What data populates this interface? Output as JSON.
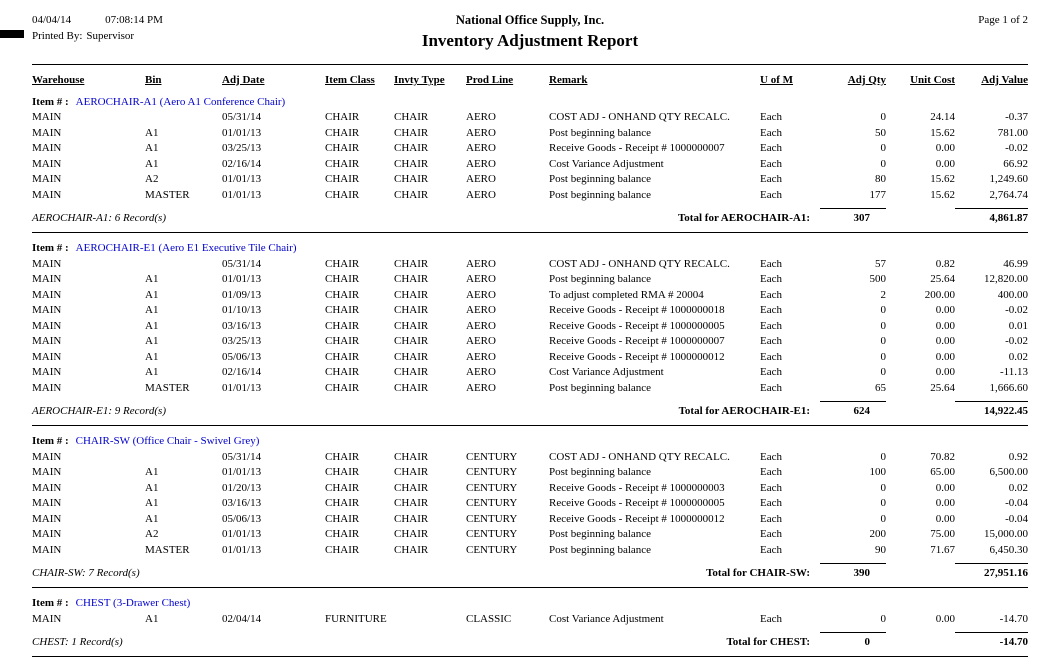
{
  "colors": {
    "item_link": "#0000cc"
  },
  "header": {
    "date": "04/04/14",
    "time": "07:08:14 PM",
    "printed_by_label": "Printed By:",
    "printed_by_value": "Supervisor",
    "company": "National Office Supply, Inc.",
    "report_title": "Inventory Adjustment Report",
    "page_label": "Page 1 of 2"
  },
  "table": {
    "columns": [
      "Warehouse",
      "Bin",
      "Adj Date",
      "Item Class",
      "Invty Type",
      "Prod Line",
      "Remark",
      "U of M",
      "Adj Qty",
      "Unit Cost",
      "Adj Value"
    ],
    "column_keys": [
      "warehouse",
      "bin",
      "adj_date",
      "item_class",
      "invty_type",
      "prod_line",
      "remark",
      "u_of_m",
      "adj_qty",
      "unit_cost",
      "adj_value"
    ],
    "groups": [
      {
        "item_label": "Item # :",
        "item_name": "AEROCHAIR-A1 (Aero A1 Conference Chair)",
        "rows": [
          [
            "MAIN",
            "",
            "05/31/14",
            "CHAIR",
            "CHAIR",
            "AERO",
            "COST ADJ - ONHAND QTY RECALC.",
            "Each",
            "0",
            "24.14",
            "-0.37"
          ],
          [
            "MAIN",
            "A1",
            "01/01/13",
            "CHAIR",
            "CHAIR",
            "AERO",
            "Post beginning balance",
            "Each",
            "50",
            "15.62",
            "781.00"
          ],
          [
            "MAIN",
            "A1",
            "03/25/13",
            "CHAIR",
            "CHAIR",
            "AERO",
            "Receive Goods - Receipt # 1000000007",
            "Each",
            "0",
            "0.00",
            "-0.02"
          ],
          [
            "MAIN",
            "A1",
            "02/16/14",
            "CHAIR",
            "CHAIR",
            "AERO",
            "Cost Variance Adjustment",
            "Each",
            "0",
            "0.00",
            "66.92"
          ],
          [
            "MAIN",
            "A2",
            "01/01/13",
            "CHAIR",
            "CHAIR",
            "AERO",
            "Post beginning balance",
            "Each",
            "80",
            "15.62",
            "1,249.60"
          ],
          [
            "MAIN",
            "MASTER",
            "01/01/13",
            "CHAIR",
            "CHAIR",
            "AERO",
            "Post beginning balance",
            "Each",
            "177",
            "15.62",
            "2,764.74"
          ]
        ],
        "record_count": "AEROCHAIR-A1: 6 Record(s)",
        "total_label": "Total for AEROCHAIR-A1:",
        "total_qty": "307",
        "total_value": "4,861.87"
      },
      {
        "item_label": "Item # :",
        "item_name": "AEROCHAIR-E1 (Aero E1 Executive Tile Chair)",
        "rows": [
          [
            "MAIN",
            "",
            "05/31/14",
            "CHAIR",
            "CHAIR",
            "AERO",
            "COST ADJ - ONHAND QTY RECALC.",
            "Each",
            "57",
            "0.82",
            "46.99"
          ],
          [
            "MAIN",
            "A1",
            "01/01/13",
            "CHAIR",
            "CHAIR",
            "AERO",
            "Post beginning balance",
            "Each",
            "500",
            "25.64",
            "12,820.00"
          ],
          [
            "MAIN",
            "A1",
            "01/09/13",
            "CHAIR",
            "CHAIR",
            "AERO",
            "To adjust completed RMA # 20004",
            "Each",
            "2",
            "200.00",
            "400.00"
          ],
          [
            "MAIN",
            "A1",
            "01/10/13",
            "CHAIR",
            "CHAIR",
            "AERO",
            "Receive Goods - Receipt # 1000000018",
            "Each",
            "0",
            "0.00",
            "-0.02"
          ],
          [
            "MAIN",
            "A1",
            "03/16/13",
            "CHAIR",
            "CHAIR",
            "AERO",
            "Receive Goods - Receipt # 1000000005",
            "Each",
            "0",
            "0.00",
            "0.01"
          ],
          [
            "MAIN",
            "A1",
            "03/25/13",
            "CHAIR",
            "CHAIR",
            "AERO",
            "Receive Goods - Receipt # 1000000007",
            "Each",
            "0",
            "0.00",
            "-0.02"
          ],
          [
            "MAIN",
            "A1",
            "05/06/13",
            "CHAIR",
            "CHAIR",
            "AERO",
            "Receive Goods - Receipt # 1000000012",
            "Each",
            "0",
            "0.00",
            "0.02"
          ],
          [
            "MAIN",
            "A1",
            "02/16/14",
            "CHAIR",
            "CHAIR",
            "AERO",
            "Cost Variance Adjustment",
            "Each",
            "0",
            "0.00",
            "-11.13"
          ],
          [
            "MAIN",
            "MASTER",
            "01/01/13",
            "CHAIR",
            "CHAIR",
            "AERO",
            "Post beginning balance",
            "Each",
            "65",
            "25.64",
            "1,666.60"
          ]
        ],
        "record_count": "AEROCHAIR-E1: 9 Record(s)",
        "total_label": "Total for AEROCHAIR-E1:",
        "total_qty": "624",
        "total_value": "14,922.45"
      },
      {
        "item_label": "Item # :",
        "item_name": "CHAIR-SW (Office Chair - Swivel Grey)",
        "rows": [
          [
            "MAIN",
            "",
            "05/31/14",
            "CHAIR",
            "CHAIR",
            "CENTURY",
            "COST ADJ - ONHAND QTY RECALC.",
            "Each",
            "0",
            "70.82",
            "0.92"
          ],
          [
            "MAIN",
            "A1",
            "01/01/13",
            "CHAIR",
            "CHAIR",
            "CENTURY",
            "Post beginning balance",
            "Each",
            "100",
            "65.00",
            "6,500.00"
          ],
          [
            "MAIN",
            "A1",
            "01/20/13",
            "CHAIR",
            "CHAIR",
            "CENTURY",
            "Receive Goods - Receipt # 1000000003",
            "Each",
            "0",
            "0.00",
            "0.02"
          ],
          [
            "MAIN",
            "A1",
            "03/16/13",
            "CHAIR",
            "CHAIR",
            "CENTURY",
            "Receive Goods - Receipt # 1000000005",
            "Each",
            "0",
            "0.00",
            "-0.04"
          ],
          [
            "MAIN",
            "A1",
            "05/06/13",
            "CHAIR",
            "CHAIR",
            "CENTURY",
            "Receive Goods - Receipt # 1000000012",
            "Each",
            "0",
            "0.00",
            "-0.04"
          ],
          [
            "MAIN",
            "A2",
            "01/01/13",
            "CHAIR",
            "CHAIR",
            "CENTURY",
            "Post beginning balance",
            "Each",
            "200",
            "75.00",
            "15,000.00"
          ],
          [
            "MAIN",
            "MASTER",
            "01/01/13",
            "CHAIR",
            "CHAIR",
            "CENTURY",
            "Post beginning balance",
            "Each",
            "90",
            "71.67",
            "6,450.30"
          ]
        ],
        "record_count": "CHAIR-SW: 7 Record(s)",
        "total_label": "Total for CHAIR-SW:",
        "total_qty": "390",
        "total_value": "27,951.16"
      },
      {
        "item_label": "Item # :",
        "item_name": "CHEST (3-Drawer Chest)",
        "rows": [
          [
            "MAIN",
            "A1",
            "02/04/14",
            "FURNITURE",
            "",
            "CLASSIC",
            "Cost Variance Adjustment",
            "Each",
            "0",
            "0.00",
            "-14.70"
          ]
        ],
        "record_count": "CHEST: 1 Record(s)",
        "total_label": "Total for CHEST:",
        "total_qty": "0",
        "total_value": "-14.70"
      }
    ]
  }
}
